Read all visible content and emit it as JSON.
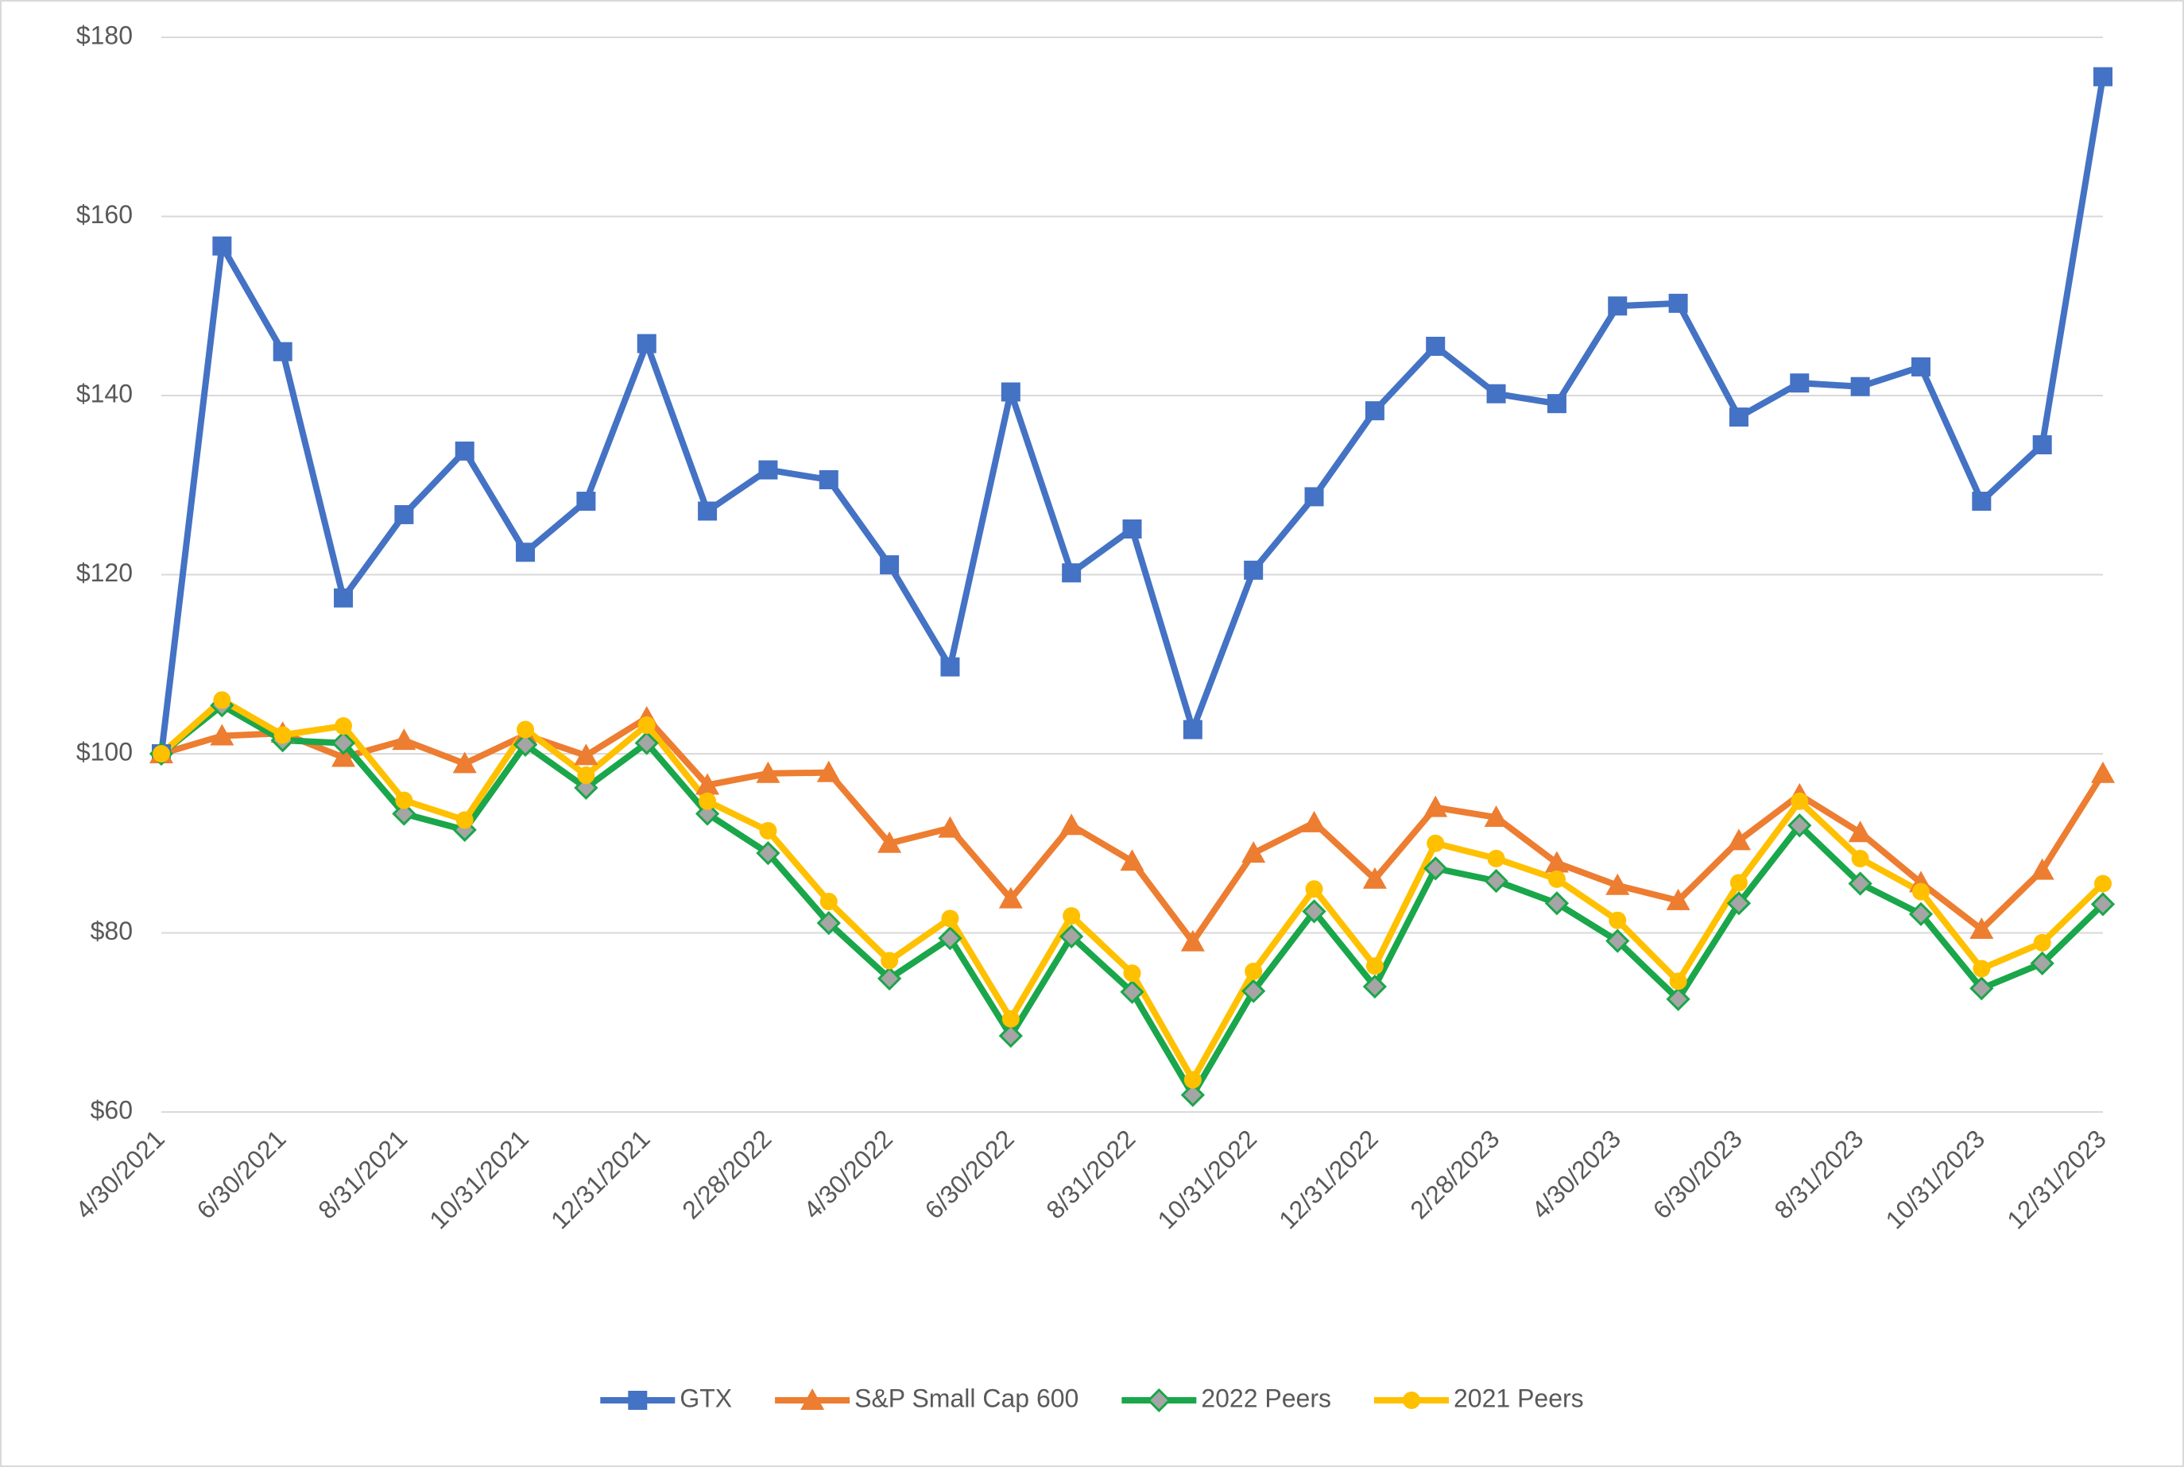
{
  "chart_data": {
    "type": "line",
    "categories": [
      "4/30/2021",
      null,
      "6/30/2021",
      null,
      "8/31/2021",
      null,
      "10/31/2021",
      null,
      "12/31/2021",
      null,
      "2/28/2022",
      null,
      "4/30/2022",
      null,
      "6/30/2022",
      null,
      "8/31/2022",
      null,
      "10/31/2022",
      null,
      "12/31/2022",
      null,
      "2/28/2023",
      null,
      "4/30/2023",
      null,
      "6/30/2023",
      null,
      "8/31/2023",
      null,
      "10/31/2023",
      null,
      "12/31/2023"
    ],
    "series": [
      {
        "name": "GTX",
        "color": "#4472c4",
        "marker": "square",
        "values": [
          100,
          156.7,
          144.9,
          117.4,
          126.7,
          133.8,
          122.5,
          128.2,
          145.8,
          127.1,
          131.7,
          130.6,
          121.1,
          109.7,
          140.4,
          120.2,
          125.1,
          102.7,
          120.5,
          128.7,
          138.3,
          145.5,
          140.2,
          139.1,
          150.0,
          150.3,
          137.6,
          141.4,
          141.0,
          143.2,
          128.2,
          134.5,
          175.6
        ]
      },
      {
        "name": "S&P Small Cap 600",
        "color": "#ed7d31",
        "marker": "triangle",
        "values": [
          100,
          102.0,
          102.3,
          99.6,
          101.5,
          98.9,
          102.1,
          99.8,
          104.0,
          96.5,
          97.8,
          97.9,
          90.0,
          91.7,
          83.8,
          92.0,
          88.0,
          79.0,
          88.9,
          92.3,
          86.0,
          94.0,
          92.9,
          87.8,
          85.3,
          83.6,
          90.3,
          95.4,
          91.2,
          85.6,
          80.4,
          87.0,
          97.8
        ]
      },
      {
        "name": "2022 Peers",
        "color": "#1aa64a",
        "marker": "diamond",
        "values": [
          100,
          105.4,
          101.5,
          101.2,
          93.3,
          91.5,
          101.0,
          96.2,
          101.2,
          93.3,
          88.9,
          81.1,
          74.9,
          79.4,
          68.5,
          79.6,
          73.4,
          61.9,
          73.5,
          82.4,
          74.0,
          87.2,
          85.8,
          83.3,
          79.1,
          72.6,
          83.3,
          92.0,
          85.5,
          82.1,
          73.8,
          76.6,
          83.2
        ]
      },
      {
        "name": "2021 Peers",
        "color": "#ffc000",
        "marker": "circle",
        "values": [
          100,
          106.0,
          102.1,
          103.1,
          94.8,
          92.6,
          102.7,
          97.6,
          103.2,
          94.7,
          91.4,
          83.5,
          76.9,
          81.6,
          70.4,
          81.9,
          75.5,
          63.6,
          75.7,
          84.9,
          76.3,
          90.0,
          88.3,
          86.0,
          81.4,
          74.6,
          85.6,
          94.7,
          88.3,
          84.6,
          76.0,
          78.9,
          85.5
        ]
      }
    ],
    "ylim": [
      60,
      180
    ],
    "yticks": [
      {
        "value": 60,
        "label": "$60"
      },
      {
        "value": 80,
        "label": "$80"
      },
      {
        "value": 100,
        "label": "$100"
      },
      {
        "value": 120,
        "label": "$120"
      },
      {
        "value": 140,
        "label": "$140"
      },
      {
        "value": 160,
        "label": "$160"
      },
      {
        "value": 180,
        "label": "$180"
      }
    ],
    "grid": true,
    "legend": "bottom"
  }
}
